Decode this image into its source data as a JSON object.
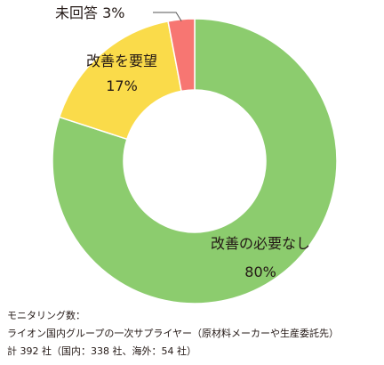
{
  "chart_data": {
    "type": "pie",
    "donut": true,
    "categories": [
      "改善の必要なし",
      "改善を要望",
      "未回答"
    ],
    "values": [
      80,
      17,
      3
    ],
    "value_labels": [
      "80%",
      "17%",
      "3%"
    ],
    "colors": [
      "#8ccc6e",
      "#fadb4a",
      "#f77672"
    ],
    "start": "top",
    "direction": "clockwise"
  },
  "notes": {
    "line1": "モニタリング数：",
    "line2": "ライオン国内グループの一次サプライヤー（原材料メーカーや生産委託先）",
    "line3": "計 392 社（国内：338 社、海外：54 社）"
  }
}
